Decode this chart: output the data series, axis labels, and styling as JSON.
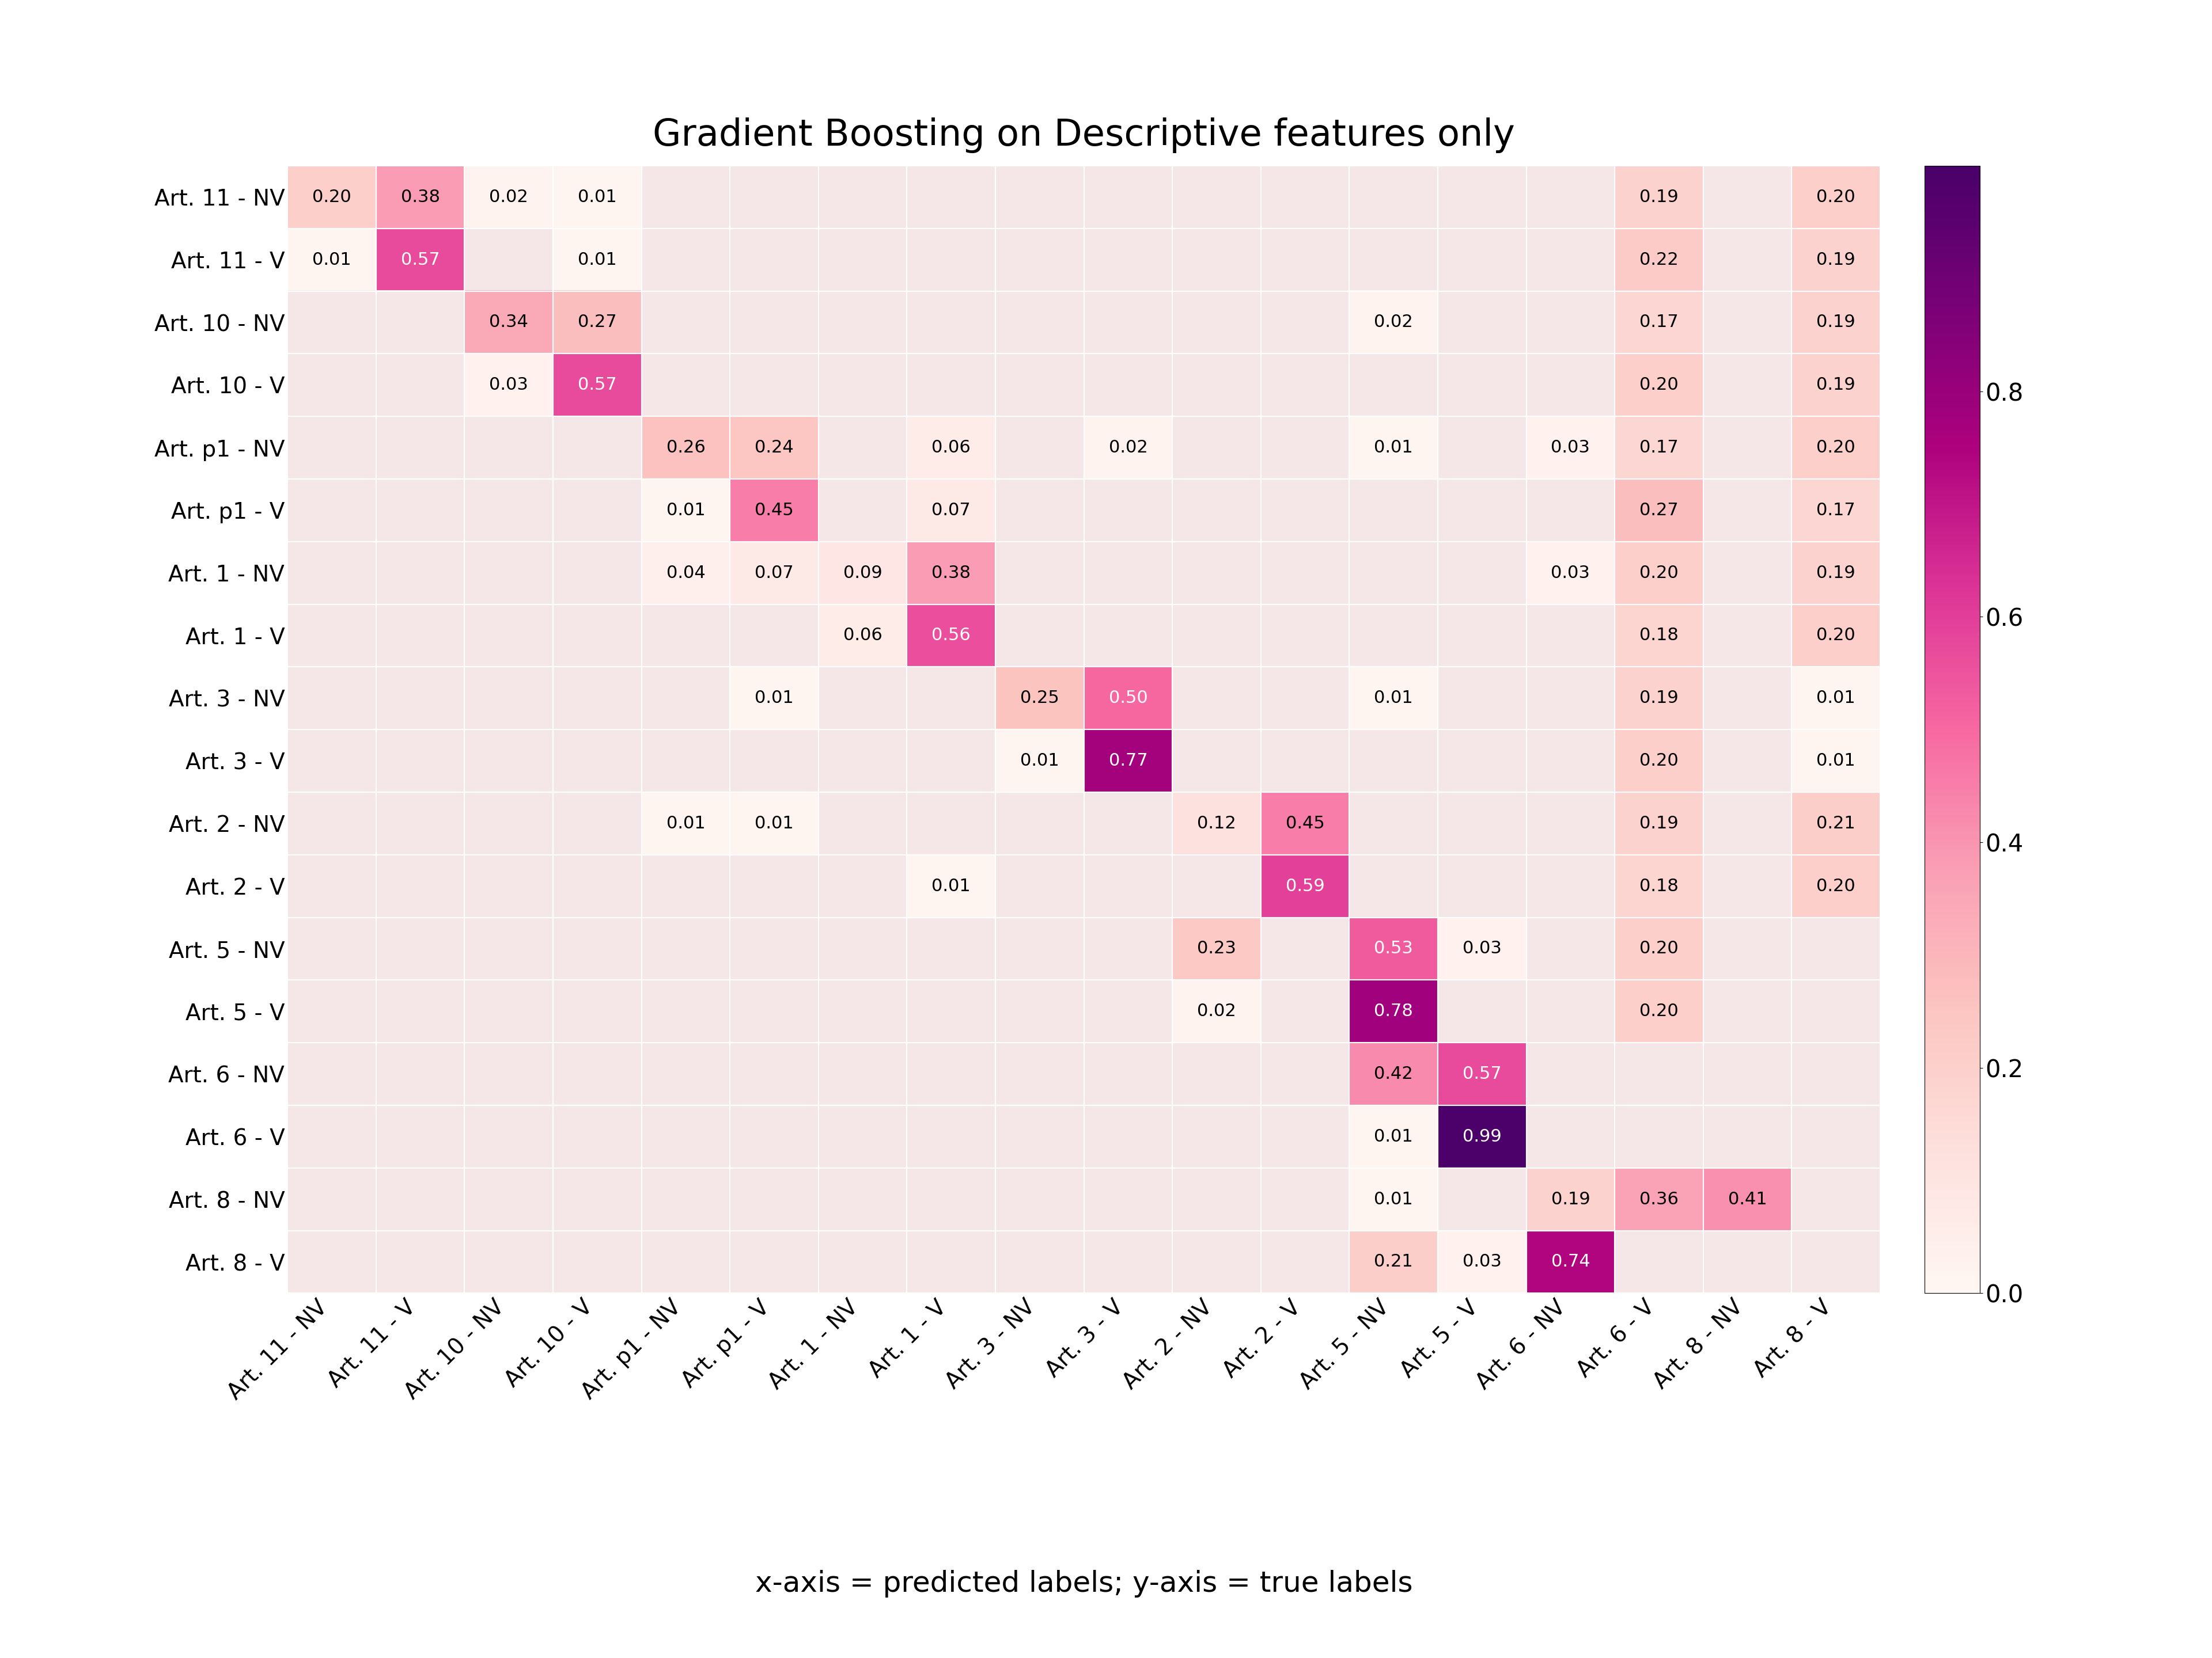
{
  "title": "Gradient Boosting on Descriptive features only",
  "xlabel": "x-axis = predicted labels; y-axis = true labels",
  "labels": [
    "Art. 11 - NV",
    "Art. 11 - V",
    "Art. 10 - NV",
    "Art. 10 - V",
    "Art. p1 - NV",
    "Art. p1 - V",
    "Art. 1 - NV",
    "Art. 1 - V",
    "Art. 3 - NV",
    "Art. 3 - V",
    "Art. 2 - NV",
    "Art. 2 - V",
    "Art. 5 - NV",
    "Art. 5 - V",
    "Art. 6 - NV",
    "Art. 6 - V",
    "Art. 8 - NV",
    "Art. 8 - V"
  ],
  "matrix": [
    [
      0.2,
      0.38,
      0.02,
      0.01,
      0.0,
      0.0,
      0.0,
      0.0,
      0.0,
      0.0,
      0.0,
      0.0,
      0.0,
      0.0,
      0.0,
      0.19,
      0.0,
      0.2
    ],
    [
      0.01,
      0.57,
      0.0,
      0.01,
      0.0,
      0.0,
      0.0,
      0.0,
      0.0,
      0.0,
      0.0,
      0.0,
      0.0,
      0.0,
      0.0,
      0.22,
      0.0,
      0.19
    ],
    [
      0.0,
      0.0,
      0.34,
      0.27,
      0.0,
      0.0,
      0.0,
      0.0,
      0.0,
      0.0,
      0.0,
      0.0,
      0.02,
      0.0,
      0.0,
      0.17,
      0.0,
      0.19
    ],
    [
      0.0,
      0.0,
      0.03,
      0.57,
      0.0,
      0.0,
      0.0,
      0.0,
      0.0,
      0.0,
      0.0,
      0.0,
      0.0,
      0.0,
      0.0,
      0.2,
      0.0,
      0.19
    ],
    [
      0.0,
      0.0,
      0.0,
      0.0,
      0.26,
      0.24,
      0.0,
      0.06,
      0.0,
      0.02,
      0.0,
      0.0,
      0.01,
      0.0,
      0.03,
      0.17,
      0.0,
      0.2
    ],
    [
      0.0,
      0.0,
      0.0,
      0.0,
      0.01,
      0.45,
      0.0,
      0.07,
      0.0,
      0.0,
      0.0,
      0.0,
      0.0,
      0.0,
      0.0,
      0.27,
      0.0,
      0.17
    ],
    [
      0.0,
      0.0,
      0.0,
      0.0,
      0.04,
      0.07,
      0.09,
      0.38,
      0.0,
      0.0,
      0.0,
      0.0,
      0.0,
      0.0,
      0.03,
      0.2,
      0.0,
      0.19
    ],
    [
      0.0,
      0.0,
      0.0,
      0.0,
      0.0,
      0.0,
      0.06,
      0.56,
      0.0,
      0.0,
      0.0,
      0.0,
      0.0,
      0.0,
      0.0,
      0.18,
      0.0,
      0.2
    ],
    [
      0.0,
      0.0,
      0.0,
      0.0,
      0.0,
      0.01,
      0.0,
      0.0,
      0.25,
      0.5,
      0.0,
      0.0,
      0.01,
      0.0,
      0.0,
      0.19,
      0.0,
      0.01
    ],
    [
      0.0,
      0.0,
      0.0,
      0.0,
      0.0,
      0.0,
      0.0,
      0.0,
      0.01,
      0.77,
      0.0,
      0.0,
      0.0,
      0.0,
      0.0,
      0.2,
      0.0,
      0.01
    ],
    [
      0.0,
      0.0,
      0.0,
      0.0,
      0.01,
      0.01,
      0.0,
      0.0,
      0.0,
      0.0,
      0.12,
      0.45,
      0.0,
      0.0,
      0.0,
      0.19,
      0.0,
      0.21
    ],
    [
      0.0,
      0.0,
      0.0,
      0.0,
      0.0,
      0.0,
      0.0,
      0.01,
      0.0,
      0.0,
      0.0,
      0.59,
      0.0,
      0.0,
      0.0,
      0.18,
      0.0,
      0.2
    ],
    [
      0.0,
      0.0,
      0.0,
      0.0,
      0.0,
      0.0,
      0.0,
      0.0,
      0.0,
      0.0,
      0.23,
      0.0,
      0.53,
      0.03,
      0.0,
      0.2,
      0.0,
      0.0
    ],
    [
      0.0,
      0.0,
      0.0,
      0.0,
      0.0,
      0.0,
      0.0,
      0.0,
      0.0,
      0.0,
      0.02,
      0.0,
      0.78,
      0.0,
      0.0,
      0.2,
      0.0,
      0.0
    ],
    [
      0.0,
      0.0,
      0.0,
      0.0,
      0.0,
      0.0,
      0.0,
      0.0,
      0.0,
      0.0,
      0.0,
      0.0,
      0.42,
      0.57,
      0.0,
      0.0,
      0.0,
      0.0
    ],
    [
      0.0,
      0.0,
      0.0,
      0.0,
      0.0,
      0.0,
      0.0,
      0.0,
      0.0,
      0.0,
      0.0,
      0.0,
      0.01,
      0.99,
      0.0,
      0.0,
      0.0,
      0.0
    ],
    [
      0.0,
      0.0,
      0.0,
      0.0,
      0.0,
      0.0,
      0.0,
      0.0,
      0.0,
      0.0,
      0.0,
      0.0,
      0.01,
      0.0,
      0.19,
      0.36,
      0.41,
      0.0
    ],
    [
      0.0,
      0.0,
      0.0,
      0.0,
      0.0,
      0.0,
      0.0,
      0.0,
      0.0,
      0.0,
      0.0,
      0.0,
      0.21,
      0.03,
      0.74,
      0.0,
      0.0,
      0.0
    ]
  ],
  "cmap": "RdPu",
  "vmin": 0.0,
  "vmax": 1.0,
  "title_fontsize": 46,
  "tick_fontsize": 28,
  "annot_fontsize": 22,
  "xlabel_fontsize": 36,
  "cbar_tick_fontsize": 30
}
